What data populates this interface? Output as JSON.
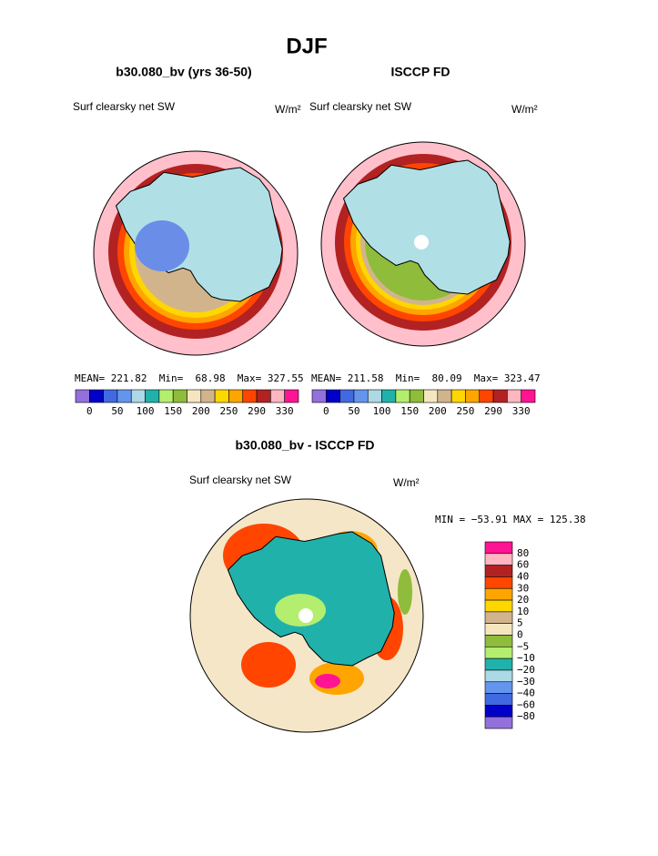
{
  "title": "DJF",
  "panels": [
    {
      "title": "b30.080_bv (yrs 36-50)",
      "label": "Surf clearsky net SW",
      "units": "W/m²",
      "stats": "MEAN= 221.82  Min=  68.98  Max= 327.55"
    },
    {
      "title": "ISCCP FD",
      "label": "Surf clearsky net SW",
      "units": "W/m²",
      "stats": "MEAN= 211.58  Min=  80.09  Max= 323.47"
    }
  ],
  "colorbar": {
    "colors": [
      "#9370db",
      "#0000c8",
      "#4169e1",
      "#6495ed",
      "#add8e6",
      "#20b2aa",
      "#b4ee6e",
      "#8fbc3a",
      "#f5e6c0",
      "#d2b48c",
      "#ffd700",
      "#ffa500",
      "#ff4500",
      "#b22222",
      "#ffb6c1",
      "#ff1493"
    ],
    "labels": [
      "0",
      "50",
      "100",
      "150",
      "200",
      "250",
      "290",
      "330"
    ]
  },
  "difference": {
    "title": "b30.080_bv - ISCCP FD",
    "label": "Surf clearsky net SW",
    "units": "W/m²",
    "stats": "MIN = −53.91 MAX = 125.38",
    "colors": [
      "#ff1493",
      "#ffb6c1",
      "#b22222",
      "#ff4500",
      "#ffa500",
      "#ffd700",
      "#d2b48c",
      "#f5e6c0",
      "#8fbc3a",
      "#b4ee6e",
      "#20b2aa",
      "#add8e6",
      "#6495ed",
      "#4169e1",
      "#0000c8",
      "#9370db"
    ],
    "labels": [
      "80",
      "60",
      "40",
      "30",
      "20",
      "10",
      "5",
      "0",
      "−5",
      "−10",
      "−20",
      "−30",
      "−40",
      "−60",
      "−80"
    ]
  }
}
